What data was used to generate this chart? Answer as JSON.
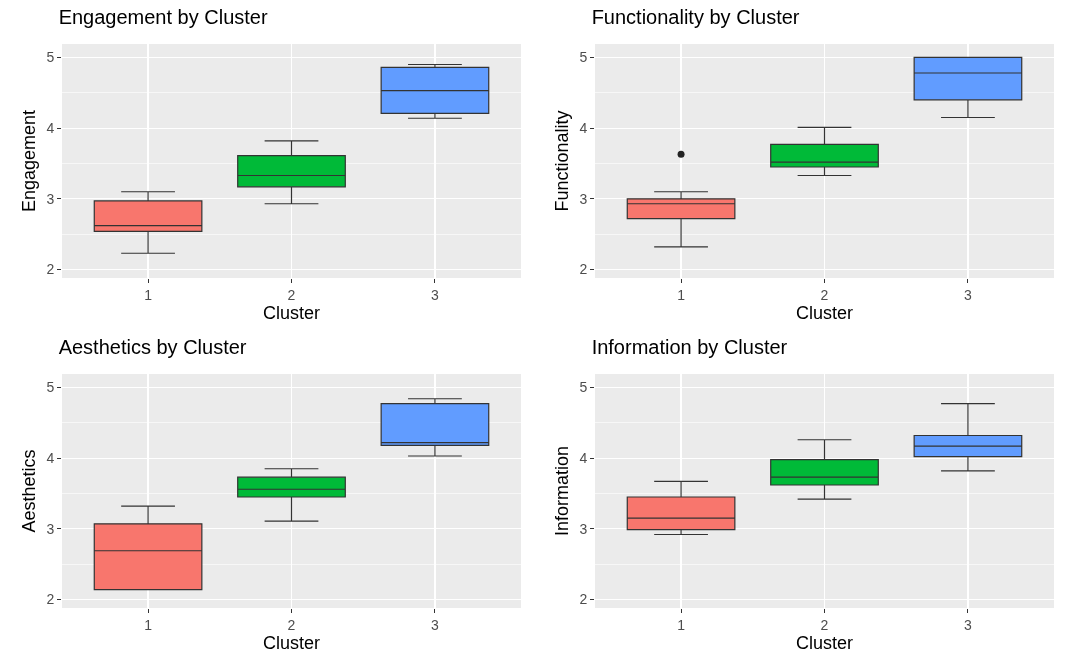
{
  "chart_data": [
    {
      "type": "box",
      "title": "Engagement by Cluster",
      "xlabel": "Cluster",
      "ylabel": "Engagement",
      "categories": [
        "1",
        "2",
        "3"
      ],
      "colors": [
        "#f8766d",
        "#00ba38",
        "#619cff"
      ],
      "ylim": [
        1.88,
        5.19
      ],
      "yticks": [
        2,
        3,
        4,
        5
      ],
      "grid": true,
      "boxes": [
        {
          "low": 2.23,
          "q1": 2.54,
          "median": 2.62,
          "q3": 2.97,
          "high": 3.1
        },
        {
          "low": 2.93,
          "q1": 3.17,
          "median": 3.33,
          "q3": 3.61,
          "high": 3.82
        },
        {
          "low": 4.14,
          "q1": 4.21,
          "median": 4.53,
          "q3": 4.86,
          "high": 4.9
        }
      ]
    },
    {
      "type": "box",
      "title": "Functionality by Cluster",
      "xlabel": "Cluster",
      "ylabel": "Functionality",
      "categories": [
        "1",
        "2",
        "3"
      ],
      "colors": [
        "#f8766d",
        "#00ba38",
        "#619cff"
      ],
      "ylim": [
        1.88,
        5.19
      ],
      "yticks": [
        2,
        3,
        4,
        5
      ],
      "grid": true,
      "boxes": [
        {
          "low": 2.32,
          "q1": 2.72,
          "median": 2.93,
          "q3": 3.0,
          "high": 3.1,
          "outliers": [
            3.63
          ]
        },
        {
          "low": 3.33,
          "q1": 3.45,
          "median": 3.52,
          "q3": 3.77,
          "high": 4.01
        },
        {
          "low": 4.15,
          "q1": 4.4,
          "median": 4.78,
          "q3": 5.0,
          "high": 5.0
        }
      ]
    },
    {
      "type": "box",
      "title": "Aesthetics by Cluster",
      "xlabel": "Cluster",
      "ylabel": "Aesthetics",
      "categories": [
        "1",
        "2",
        "3"
      ],
      "colors": [
        "#f8766d",
        "#00ba38",
        "#619cff"
      ],
      "ylim": [
        1.88,
        5.19
      ],
      "yticks": [
        2,
        3,
        4,
        5
      ],
      "grid": true,
      "boxes": [
        {
          "low": 2.14,
          "q1": 2.14,
          "median": 2.69,
          "q3": 3.07,
          "high": 3.32
        },
        {
          "low": 3.11,
          "q1": 3.45,
          "median": 3.56,
          "q3": 3.73,
          "high": 3.85
        },
        {
          "low": 4.03,
          "q1": 4.18,
          "median": 4.22,
          "q3": 4.77,
          "high": 4.84
        }
      ]
    },
    {
      "type": "box",
      "title": "Information by Cluster",
      "xlabel": "Cluster",
      "ylabel": "Information",
      "categories": [
        "1",
        "2",
        "3"
      ],
      "colors": [
        "#f8766d",
        "#00ba38",
        "#619cff"
      ],
      "ylim": [
        1.88,
        5.19
      ],
      "yticks": [
        2,
        3,
        4,
        5
      ],
      "grid": true,
      "boxes": [
        {
          "low": 2.92,
          "q1": 2.99,
          "median": 3.15,
          "q3": 3.45,
          "high": 3.67
        },
        {
          "low": 3.42,
          "q1": 3.62,
          "median": 3.73,
          "q3": 3.98,
          "high": 4.26
        },
        {
          "low": 3.82,
          "q1": 4.02,
          "median": 4.17,
          "q3": 4.32,
          "high": 4.77
        }
      ]
    }
  ]
}
